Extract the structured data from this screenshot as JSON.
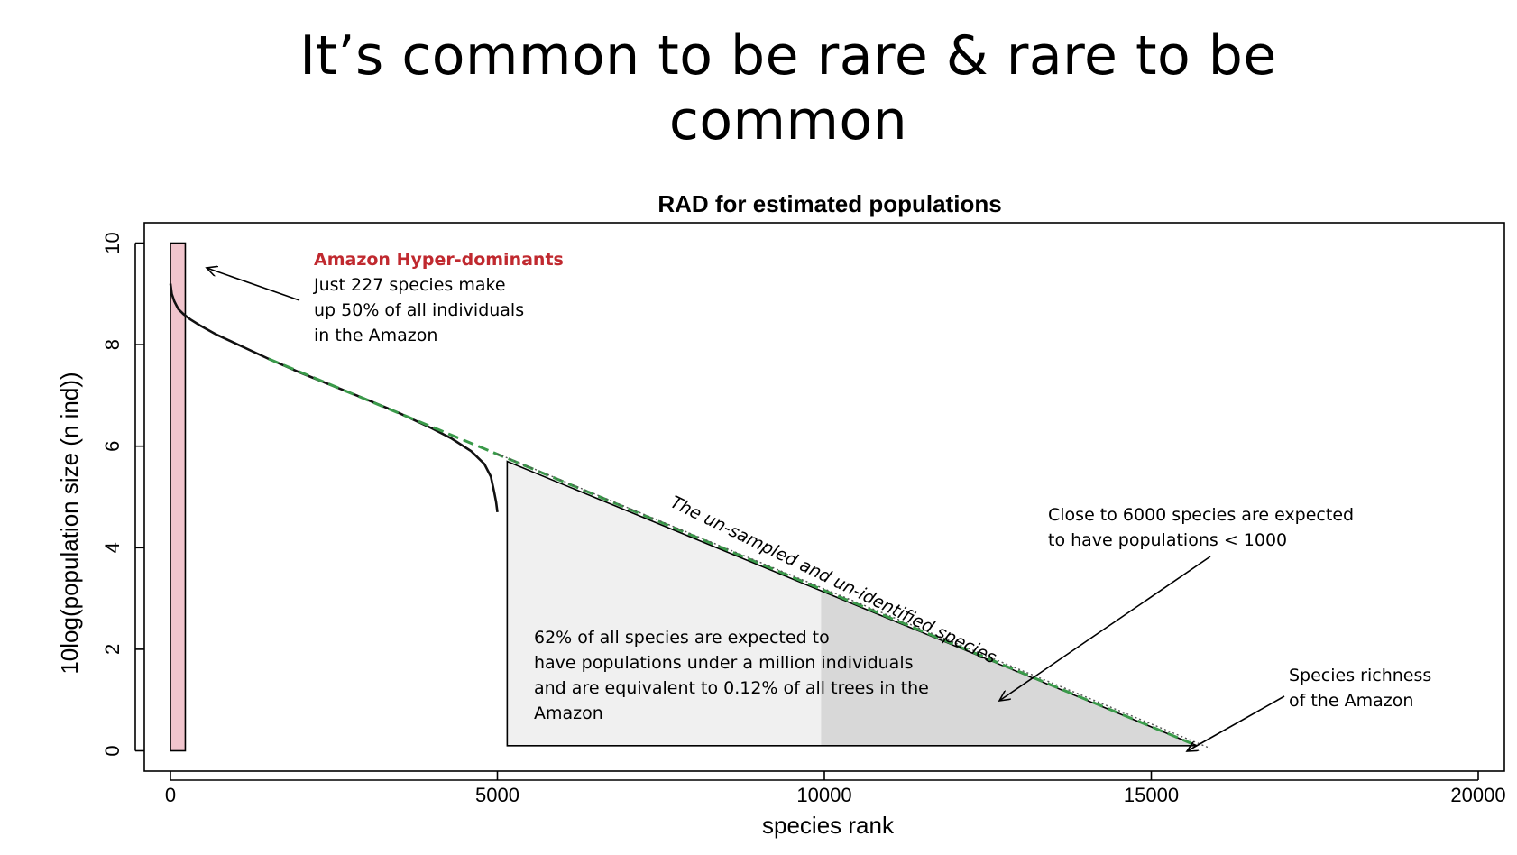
{
  "slide": {
    "title_line1": "It’s common to be rare & rare to be",
    "title_line2": "common"
  },
  "chart_data": {
    "type": "line",
    "title": "RAD for estimated populations",
    "xlabel": "species rank",
    "ylabel": "10log(population size (n ind))",
    "xlim": [
      -400,
      20400
    ],
    "ylim": [
      -0.4,
      10.4
    ],
    "x_ticks": [
      0,
      5000,
      10000,
      15000,
      20000
    ],
    "y_ticks": [
      0,
      2,
      4,
      6,
      8,
      10
    ],
    "y_tick_rotation": "vertical",
    "grid": false,
    "legend": "none",
    "series": [
      {
        "style": "solid-black",
        "x": [
          0,
          20,
          60,
          120,
          200,
          300,
          450,
          700,
          1000,
          1500,
          2000,
          2500,
          3000,
          3500,
          4000,
          4300,
          4600,
          4800,
          4900,
          4950,
          4980,
          5000
        ],
        "y": [
          9.2,
          9.0,
          8.85,
          8.7,
          8.6,
          8.5,
          8.38,
          8.2,
          8.02,
          7.72,
          7.44,
          7.18,
          6.92,
          6.65,
          6.35,
          6.15,
          5.9,
          5.65,
          5.4,
          5.1,
          4.9,
          4.7
        ]
      },
      {
        "style": "dashed-green",
        "x": [
          1500,
          15700
        ],
        "y": [
          7.72,
          0.1
        ]
      },
      {
        "style": "dotted-grey",
        "x": [
          5000,
          15900
        ],
        "y": [
          5.85,
          0.05
        ]
      }
    ],
    "regions": [
      {
        "style": "pink-bar",
        "x": [
          0,
          227
        ],
        "y": [
          0,
          10
        ]
      },
      {
        "style": "light-grey-triangle",
        "x_start": 5150,
        "x_split": 9950,
        "x_end": 15700,
        "y_top": 5.7,
        "y_bottom": 0.1
      }
    ],
    "annotations": {
      "hyper_title": "Amazon Hyper-dominants",
      "hyper_lines": [
        "Just 227 species make",
        "up 50% of all individuals",
        "in the Amazon"
      ],
      "unsampled": "The un-sampled and un-identified species",
      "close_lines": [
        "Close to 6000 species are expected",
        "to have populations < 1000"
      ],
      "pct_lines": [
        "62% of all species are expected to",
        "have populations under a million individuals",
        "and are equivalent to 0.12% of all trees in the",
        "Amazon"
      ],
      "richness_lines": [
        "Species richness",
        "of the Amazon"
      ]
    }
  },
  "colors": {
    "pink_bar": "#f1c5cd",
    "green_dash": "#3a9a4a",
    "triangle_light": "#f0f0f0",
    "triangle_dark": "#d8d8d8",
    "annotation_red": "#c0292f"
  }
}
